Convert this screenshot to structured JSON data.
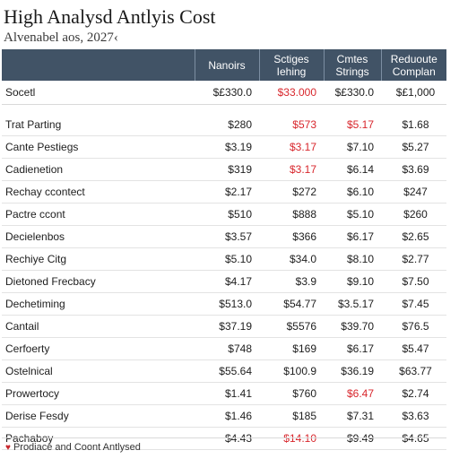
{
  "header": {
    "title": "High Analysd Antlyis Cost",
    "subtitle": "Alvenabel aos, 2027‹"
  },
  "table": {
    "columns": [
      "Nanoirs",
      "Sctiges\nIehing",
      "Cmtes\nStrings",
      "Reduoute\nComplan"
    ],
    "summary": {
      "label": "Socetl",
      "values": [
        "$£330.0",
        "$33.000",
        "$£330.0",
        "$£1,000"
      ],
      "red": [
        false,
        true,
        false,
        false
      ]
    },
    "rows": [
      {
        "label": "Trat Parting",
        "values": [
          "$280",
          "$573",
          "$5.17",
          "$1.68"
        ],
        "red": [
          false,
          true,
          true,
          false
        ]
      },
      {
        "label": "Cante Pestiegs",
        "values": [
          "$3.19",
          "$3.17",
          "$7.10",
          "$5.27"
        ],
        "red": [
          false,
          true,
          false,
          false
        ]
      },
      {
        "label": "Cadienetion",
        "values": [
          "$319",
          "$3.17",
          "$6.14",
          "$3.69"
        ],
        "red": [
          false,
          true,
          false,
          false
        ]
      },
      {
        "label": "Rechay ccontect",
        "values": [
          "$2.17",
          "$272",
          "$6.10",
          "$247"
        ],
        "red": [
          false,
          false,
          false,
          false
        ]
      },
      {
        "label": "Pactre ccont",
        "values": [
          "$510",
          "$888",
          "$5.10",
          "$260"
        ],
        "red": [
          false,
          false,
          false,
          false
        ]
      },
      {
        "label": "Decielenbos",
        "values": [
          "$3.57",
          "$366",
          "$6.17",
          "$2.65"
        ],
        "red": [
          false,
          false,
          false,
          false
        ]
      },
      {
        "label": "Rechiye Citg",
        "values": [
          "$5.10",
          "$34.0",
          "$8.10",
          "$2.77"
        ],
        "red": [
          false,
          false,
          false,
          false
        ]
      },
      {
        "label": "Dietoned Frecbacy",
        "values": [
          "$4.17",
          "$3.9",
          "$9.10",
          "$7.50"
        ],
        "red": [
          false,
          false,
          false,
          false
        ]
      },
      {
        "label": "Dechetiming",
        "values": [
          "$513.0",
          "$54.77",
          "$3.5.17",
          "$7.45"
        ],
        "red": [
          false,
          false,
          false,
          false
        ]
      },
      {
        "label": "Cantail",
        "values": [
          "$37.19",
          "$5576",
          "$39.70",
          "$76.5"
        ],
        "red": [
          false,
          false,
          false,
          false
        ]
      },
      {
        "label": "Cerfoerty",
        "values": [
          "$748",
          "$169",
          "$6.17",
          "$5.47"
        ],
        "red": [
          false,
          false,
          false,
          false
        ]
      },
      {
        "label": "Ostelnical",
        "values": [
          "$55.64",
          "$100.9",
          "$36.19",
          "$63.77"
        ],
        "red": [
          false,
          false,
          false,
          false
        ]
      },
      {
        "label": "Prowertocy",
        "values": [
          "$1.41",
          "$760",
          "$6.47",
          "$2.74"
        ],
        "red": [
          false,
          false,
          true,
          false
        ]
      },
      {
        "label": "Derise Fesdy",
        "values": [
          "$1.46",
          "$185",
          "$7.31",
          "$3.63"
        ],
        "red": [
          false,
          false,
          false,
          false
        ]
      },
      {
        "label": "Pachaboy",
        "values": [
          "$4.43",
          "$14.10",
          "$9.49",
          "$4.65"
        ],
        "red": [
          false,
          true,
          false,
          false
        ]
      }
    ]
  },
  "footer": {
    "icon": "heart-icon",
    "text": "Prodiace and Coont Antlysed"
  }
}
